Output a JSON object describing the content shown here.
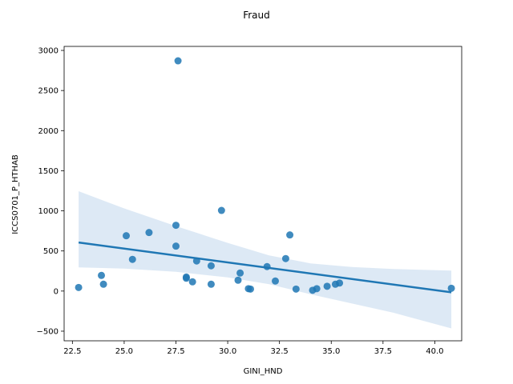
{
  "chart_data": {
    "type": "scatter",
    "title": "Fraud",
    "xlabel": "GINI_HND",
    "ylabel": "ICCS0701_P_HTHAB",
    "xlim": [
      22.1,
      41.3
    ],
    "ylim": [
      -620,
      3050
    ],
    "xticks": [
      22.5,
      25.0,
      27.5,
      30.0,
      32.5,
      35.0,
      37.5,
      40.0
    ],
    "xtick_labels": [
      "22.5",
      "25.0",
      "27.5",
      "30.0",
      "32.5",
      "35.0",
      "37.5",
      "40.0"
    ],
    "yticks": [
      -500,
      0,
      500,
      1000,
      1500,
      2000,
      2500,
      3000
    ],
    "ytick_labels": [
      "−500",
      "0",
      "500",
      "1000",
      "1500",
      "2000",
      "2500",
      "3000"
    ],
    "grid": false,
    "point_color": "#1f77b4",
    "points": [
      {
        "x": 22.8,
        "y": 45
      },
      {
        "x": 23.9,
        "y": 195
      },
      {
        "x": 24.0,
        "y": 85
      },
      {
        "x": 25.1,
        "y": 690
      },
      {
        "x": 25.4,
        "y": 395
      },
      {
        "x": 26.2,
        "y": 730
      },
      {
        "x": 27.5,
        "y": 820
      },
      {
        "x": 27.5,
        "y": 560
      },
      {
        "x": 27.6,
        "y": 2870
      },
      {
        "x": 28.0,
        "y": 175
      },
      {
        "x": 28.0,
        "y": 160
      },
      {
        "x": 28.3,
        "y": 115
      },
      {
        "x": 28.5,
        "y": 375
      },
      {
        "x": 29.2,
        "y": 315
      },
      {
        "x": 29.2,
        "y": 85
      },
      {
        "x": 29.7,
        "y": 1005
      },
      {
        "x": 30.5,
        "y": 135
      },
      {
        "x": 30.6,
        "y": 225
      },
      {
        "x": 31.0,
        "y": 30
      },
      {
        "x": 31.1,
        "y": 25
      },
      {
        "x": 31.9,
        "y": 305
      },
      {
        "x": 32.3,
        "y": 125
      },
      {
        "x": 32.8,
        "y": 405
      },
      {
        "x": 33.0,
        "y": 700
      },
      {
        "x": 33.3,
        "y": 25
      },
      {
        "x": 34.1,
        "y": 10
      },
      {
        "x": 34.3,
        "y": 30
      },
      {
        "x": 34.8,
        "y": 60
      },
      {
        "x": 35.2,
        "y": 85
      },
      {
        "x": 35.4,
        "y": 100
      },
      {
        "x": 40.8,
        "y": 35
      }
    ],
    "regression": {
      "line": [
        {
          "x": 22.8,
          "y": 605
        },
        {
          "x": 40.8,
          "y": -15
        }
      ],
      "ci_upper": [
        {
          "x": 22.8,
          "y": 1245
        },
        {
          "x": 25.0,
          "y": 1030
        },
        {
          "x": 27.5,
          "y": 810
        },
        {
          "x": 30.0,
          "y": 600
        },
        {
          "x": 32.0,
          "y": 445
        },
        {
          "x": 34.0,
          "y": 345
        },
        {
          "x": 36.0,
          "y": 300
        },
        {
          "x": 38.0,
          "y": 275
        },
        {
          "x": 40.8,
          "y": 255
        }
      ],
      "ci_lower": [
        {
          "x": 22.8,
          "y": 295
        },
        {
          "x": 25.0,
          "y": 280
        },
        {
          "x": 27.5,
          "y": 240
        },
        {
          "x": 30.0,
          "y": 170
        },
        {
          "x": 32.0,
          "y": 85
        },
        {
          "x": 34.0,
          "y": -40
        },
        {
          "x": 36.0,
          "y": -155
        },
        {
          "x": 38.0,
          "y": -270
        },
        {
          "x": 40.8,
          "y": -465
        }
      ],
      "line_color": "#1f77b4",
      "band_color": "#c6dbef"
    }
  }
}
